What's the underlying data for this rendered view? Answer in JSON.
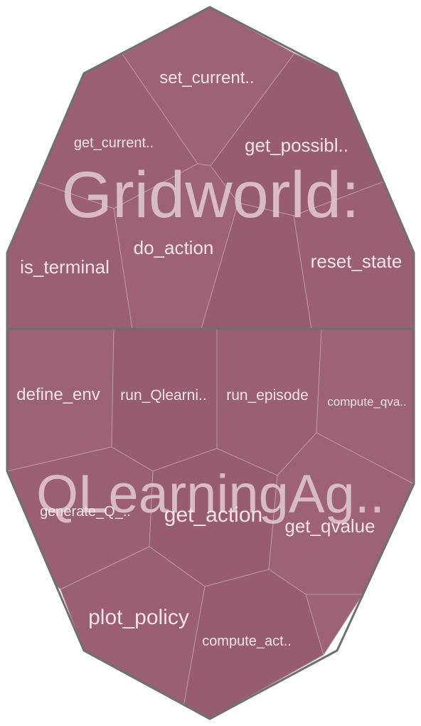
{
  "groups": [
    {
      "name": "Gridworld:",
      "cells": [
        "set_current..",
        "get_current..",
        "get_possibl..",
        "is_terminal",
        "do_action",
        "reset_state"
      ]
    },
    {
      "name": "QLearningAg..",
      "cells": [
        "define_env",
        "run_Qlearni..",
        "run_episode",
        "compute_qva..",
        "generate_Q_..",
        "get_action",
        "get_qvalue",
        "plot_policy",
        "compute_act.."
      ]
    }
  ]
}
